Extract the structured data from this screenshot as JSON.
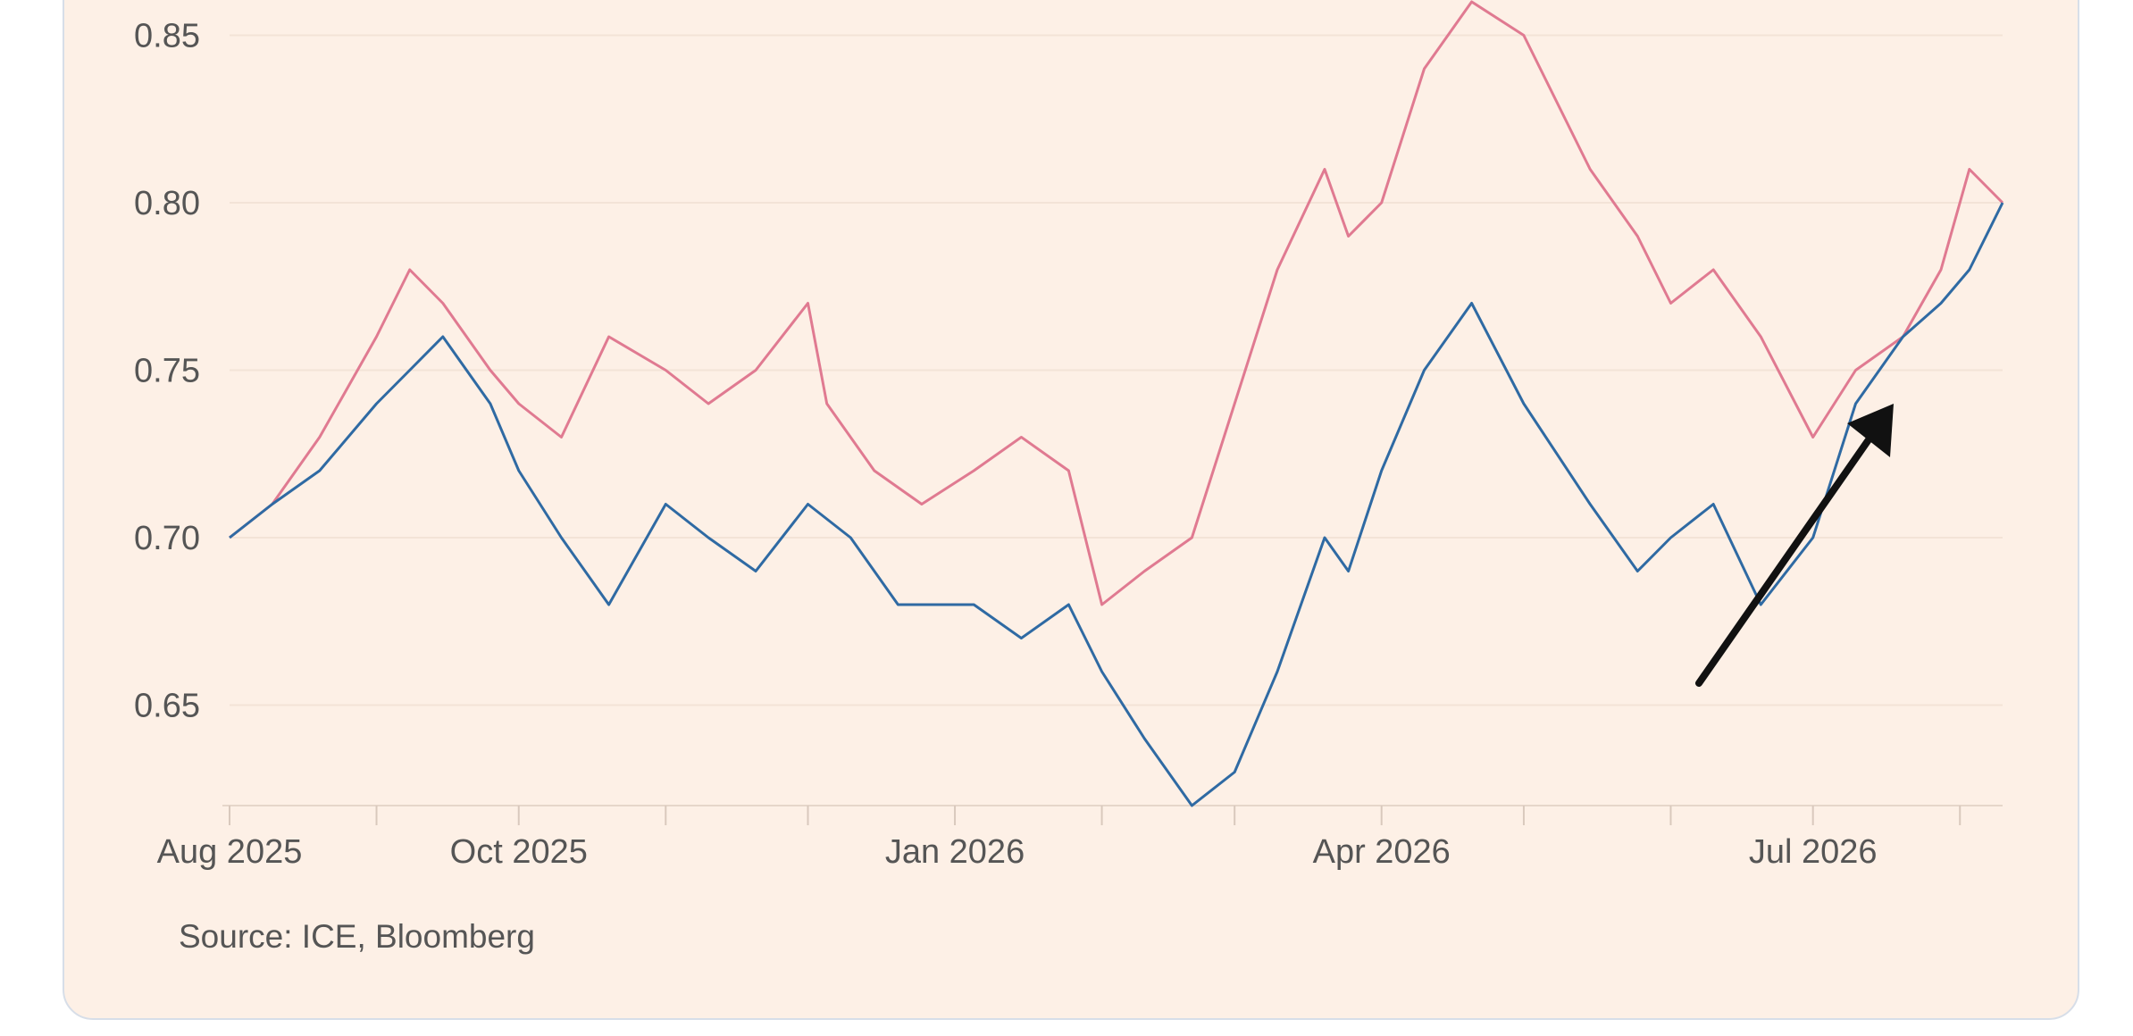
{
  "source": "Source: ICE, Bloomberg",
  "chart_data": {
    "type": "line",
    "title": "",
    "xlabel": "",
    "ylabel": "",
    "x_tick_labels": [
      "Aug 2025",
      "Oct 2025",
      "Jan 2026",
      "Apr 2026",
      "Jul 2026"
    ],
    "y_tick_labels": [
      "0.85",
      "0.80",
      "0.75",
      "0.70",
      "0.65"
    ],
    "ylim": [
      0.62,
      0.86
    ],
    "grid": true,
    "series": [
      {
        "color": "#e07a91",
        "x": [
          "2025-08-01",
          "2025-08-10",
          "2025-08-20",
          "2025-09-01",
          "2025-09-08",
          "2025-09-15",
          "2025-09-25",
          "2025-10-01",
          "2025-10-10",
          "2025-10-20",
          "2025-11-01",
          "2025-11-10",
          "2025-11-20",
          "2025-12-01",
          "2025-12-05",
          "2025-12-15",
          "2025-12-25",
          "2026-01-05",
          "2026-01-15",
          "2026-01-25",
          "2026-02-01",
          "2026-02-10",
          "2026-02-20",
          "2026-03-01",
          "2026-03-10",
          "2026-03-20",
          "2026-03-25",
          "2026-04-01",
          "2026-04-10",
          "2026-04-20",
          "2026-05-01",
          "2026-05-15",
          "2026-05-25",
          "2026-06-01",
          "2026-06-10",
          "2026-06-20",
          "2026-07-01",
          "2026-07-10",
          "2026-07-20",
          "2026-07-28",
          "2026-08-03",
          "2026-08-10"
        ],
        "y": [
          0.7,
          0.71,
          0.73,
          0.76,
          0.78,
          0.77,
          0.75,
          0.74,
          0.73,
          0.76,
          0.75,
          0.74,
          0.75,
          0.77,
          0.74,
          0.72,
          0.71,
          0.72,
          0.73,
          0.72,
          0.68,
          0.69,
          0.7,
          0.74,
          0.78,
          0.81,
          0.79,
          0.8,
          0.84,
          0.86,
          0.85,
          0.81,
          0.79,
          0.77,
          0.78,
          0.76,
          0.73,
          0.75,
          0.76,
          0.78,
          0.81,
          0.8
        ]
      },
      {
        "color": "#2f6aa3",
        "x": [
          "2025-08-01",
          "2025-08-10",
          "2025-08-20",
          "2025-09-01",
          "2025-09-08",
          "2025-09-15",
          "2025-09-25",
          "2025-10-01",
          "2025-10-10",
          "2025-10-20",
          "2025-11-01",
          "2025-11-10",
          "2025-11-20",
          "2025-12-01",
          "2025-12-10",
          "2025-12-20",
          "2026-01-05",
          "2026-01-15",
          "2026-01-25",
          "2026-02-01",
          "2026-02-10",
          "2026-02-20",
          "2026-03-01",
          "2026-03-10",
          "2026-03-20",
          "2026-03-25",
          "2026-04-01",
          "2026-04-10",
          "2026-04-20",
          "2026-05-01",
          "2026-05-15",
          "2026-05-25",
          "2026-06-01",
          "2026-06-10",
          "2026-06-20",
          "2026-07-01",
          "2026-07-10",
          "2026-07-20",
          "2026-07-28",
          "2026-08-03",
          "2026-08-10"
        ],
        "y": [
          0.7,
          0.71,
          0.72,
          0.74,
          0.75,
          0.76,
          0.74,
          0.72,
          0.7,
          0.68,
          0.71,
          0.7,
          0.69,
          0.71,
          0.7,
          0.68,
          0.68,
          0.67,
          0.68,
          0.66,
          0.64,
          0.62,
          0.63,
          0.66,
          0.7,
          0.69,
          0.72,
          0.75,
          0.77,
          0.74,
          0.71,
          0.69,
          0.7,
          0.71,
          0.68,
          0.7,
          0.74,
          0.76,
          0.77,
          0.78,
          0.8
        ]
      }
    ],
    "annotation": "arrow-up-right"
  }
}
